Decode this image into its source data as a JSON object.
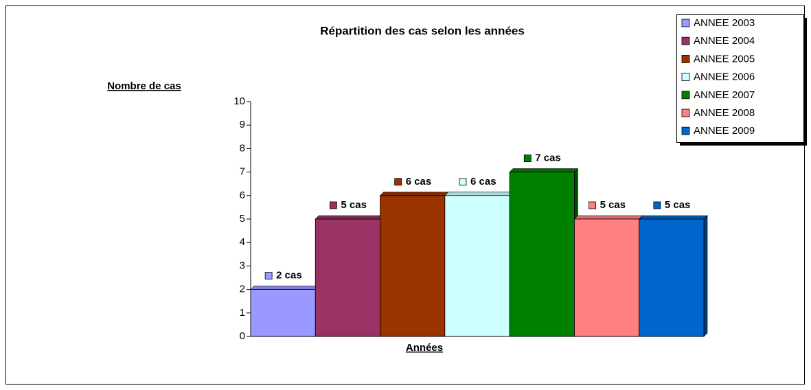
{
  "chart_data": {
    "type": "bar",
    "title": "Répartition des cas selon les années",
    "x_label": "Années",
    "y_label": "Nombre de cas",
    "categories": [
      null
    ],
    "ylim": [
      0,
      10
    ],
    "yticks": [
      0,
      1,
      2,
      3,
      4,
      5,
      6,
      7,
      8,
      9,
      10
    ],
    "legend": "top-right",
    "series": [
      {
        "name": "ANNEE 2003",
        "color": "#9999ff",
        "values": [
          2
        ],
        "value_labels": [
          "2 cas"
        ]
      },
      {
        "name": "ANNEE 2004",
        "color": "#993366",
        "values": [
          5
        ],
        "value_labels": [
          "5 cas"
        ]
      },
      {
        "name": "ANNEE 2005",
        "color": "#993300",
        "values": [
          6
        ],
        "value_labels": [
          "6 cas"
        ]
      },
      {
        "name": "ANNEE 2006",
        "color": "#ccffff",
        "values": [
          6
        ],
        "value_labels": [
          "6 cas"
        ]
      },
      {
        "name": "ANNEE 2007",
        "color": "#008000",
        "values": [
          7
        ],
        "value_labels": [
          "7 cas"
        ]
      },
      {
        "name": "ANNEE 2008",
        "color": "#ff8080",
        "values": [
          5
        ],
        "value_labels": [
          "5 cas"
        ]
      },
      {
        "name": "ANNEE 2009",
        "color": "#0066cc",
        "values": [
          5
        ],
        "value_labels": [
          "5 cas"
        ]
      }
    ]
  }
}
